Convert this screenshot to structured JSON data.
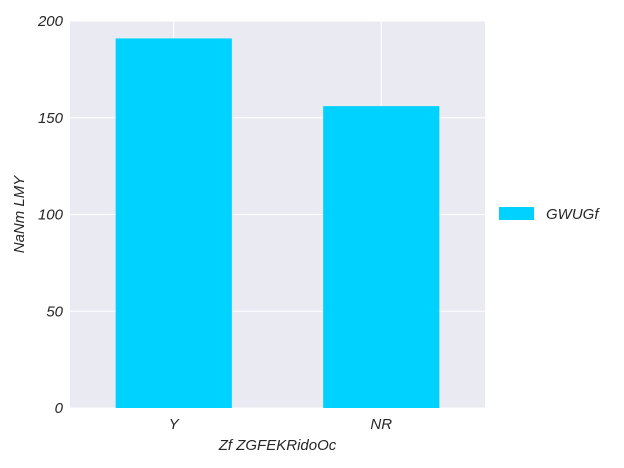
{
  "chart_data": {
    "type": "bar",
    "title": "",
    "xlabel": "Zf ZGFEKRidoOc",
    "ylabel": "NaNm LMY",
    "categories": [
      "Y",
      "NR"
    ],
    "series": [
      {
        "name": "GWUGf",
        "values": [
          191,
          156
        ],
        "color": "#00d2ff"
      }
    ],
    "ylim": [
      0,
      200
    ],
    "yticks": [
      0,
      50,
      100,
      150,
      200
    ],
    "grid": true,
    "legend_position": "right"
  },
  "colors": {
    "plot_background": "#eaeaf2",
    "grid": "#ffffff",
    "bar": "#00d2ff",
    "text": "#262626"
  }
}
